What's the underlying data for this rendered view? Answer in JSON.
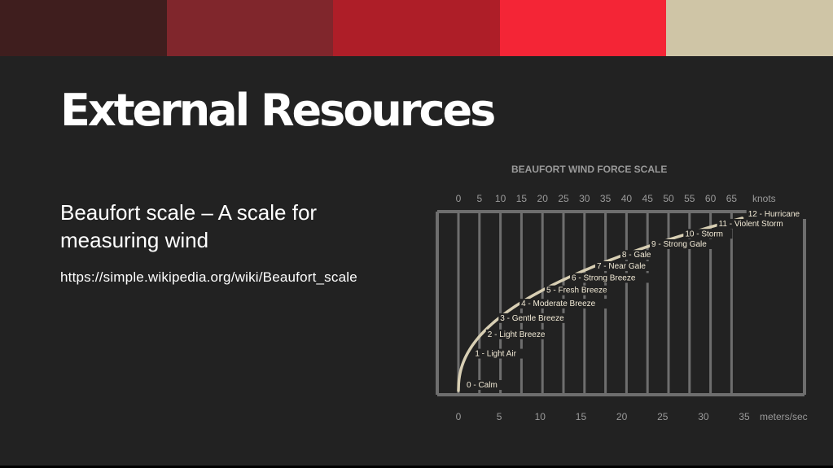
{
  "slide": {
    "title": "External Resources",
    "subtitle": "Beaufort scale – A scale for measuring wind",
    "link_text": "https://simple.wikipedia.org/wiki/Beaufort_scale"
  },
  "colors": {
    "background": "#222222",
    "stripes": [
      "#3f1e1e",
      "#80262c",
      "#ae1e28",
      "#f42536",
      "#cfc5a6"
    ],
    "curve": "#d8cfb4",
    "grid": "#6e6e6e"
  },
  "chart_data": {
    "type": "line",
    "title": "BEAUFORT WIND FORCE SCALE",
    "top_axis": {
      "unit": "knots",
      "ticks": [
        0,
        5,
        10,
        15,
        20,
        25,
        30,
        35,
        40,
        45,
        50,
        55,
        60,
        65
      ],
      "range": [
        0,
        70
      ]
    },
    "bottom_axis": {
      "unit": "meters/sec",
      "ticks": [
        0,
        5,
        10,
        15,
        20,
        25,
        30,
        35
      ],
      "range": [
        0,
        35
      ]
    },
    "grid": true,
    "levels": [
      {
        "force": 0,
        "label": "0 - Calm",
        "knots": 0
      },
      {
        "force": 1,
        "label": "1 - Light Air",
        "knots": 2
      },
      {
        "force": 2,
        "label": "2 - Light Breeze",
        "knots": 5
      },
      {
        "force": 3,
        "label": "3 - Gentle Breeze",
        "knots": 8
      },
      {
        "force": 4,
        "label": "4 - Moderate Breeze",
        "knots": 13
      },
      {
        "force": 5,
        "label": "5 - Fresh Breeze",
        "knots": 19
      },
      {
        "force": 6,
        "label": "6 - Strong Breeze",
        "knots": 25
      },
      {
        "force": 7,
        "label": "7 - Near Gale",
        "knots": 31
      },
      {
        "force": 8,
        "label": "8 - Gale",
        "knots": 37
      },
      {
        "force": 9,
        "label": "9 - Strong Gale",
        "knots": 44
      },
      {
        "force": 10,
        "label": "10 - Storm",
        "knots": 52
      },
      {
        "force": 11,
        "label": "11 - Violent Storm",
        "knots": 60
      },
      {
        "force": 12,
        "label": "12 - Hurricane",
        "knots": 67
      }
    ]
  }
}
